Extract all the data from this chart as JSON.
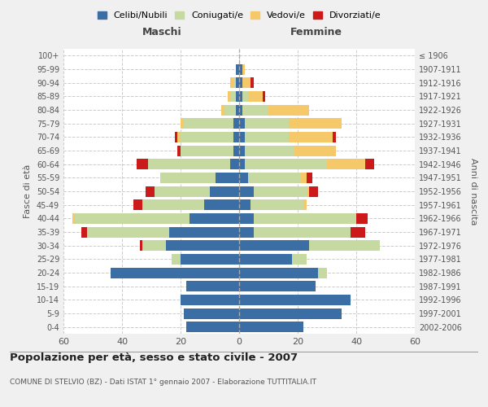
{
  "age_groups": [
    "0-4",
    "5-9",
    "10-14",
    "15-19",
    "20-24",
    "25-29",
    "30-34",
    "35-39",
    "40-44",
    "45-49",
    "50-54",
    "55-59",
    "60-64",
    "65-69",
    "70-74",
    "75-79",
    "80-84",
    "85-89",
    "90-94",
    "95-99",
    "100+"
  ],
  "birth_years": [
    "2002-2006",
    "1997-2001",
    "1992-1996",
    "1987-1991",
    "1982-1986",
    "1977-1981",
    "1972-1976",
    "1967-1971",
    "1962-1966",
    "1957-1961",
    "1952-1956",
    "1947-1951",
    "1942-1946",
    "1937-1941",
    "1932-1936",
    "1927-1931",
    "1922-1926",
    "1917-1921",
    "1912-1916",
    "1907-1911",
    "≤ 1906"
  ],
  "maschi": {
    "celibi": [
      18,
      19,
      20,
      18,
      44,
      20,
      25,
      24,
      17,
      12,
      10,
      8,
      3,
      2,
      2,
      2,
      1,
      1,
      1,
      1,
      0
    ],
    "coniugati": [
      0,
      0,
      0,
      0,
      0,
      3,
      8,
      28,
      39,
      21,
      19,
      19,
      28,
      18,
      18,
      17,
      4,
      2,
      1,
      0,
      0
    ],
    "vedovi": [
      0,
      0,
      0,
      0,
      0,
      0,
      0,
      0,
      1,
      0,
      0,
      0,
      0,
      0,
      1,
      1,
      1,
      1,
      1,
      0,
      0
    ],
    "divorziati": [
      0,
      0,
      0,
      0,
      0,
      0,
      1,
      2,
      0,
      3,
      3,
      0,
      4,
      1,
      1,
      0,
      0,
      0,
      0,
      0,
      0
    ]
  },
  "femmine": {
    "nubili": [
      22,
      35,
      38,
      26,
      27,
      18,
      24,
      5,
      5,
      4,
      5,
      3,
      2,
      2,
      2,
      2,
      1,
      1,
      1,
      1,
      0
    ],
    "coniugate": [
      0,
      0,
      0,
      0,
      3,
      5,
      24,
      33,
      35,
      18,
      18,
      18,
      28,
      17,
      15,
      15,
      9,
      2,
      0,
      0,
      0
    ],
    "vedove": [
      0,
      0,
      0,
      0,
      0,
      0,
      0,
      0,
      0,
      1,
      1,
      2,
      13,
      14,
      15,
      18,
      14,
      5,
      3,
      1,
      0
    ],
    "divorziate": [
      0,
      0,
      0,
      0,
      0,
      0,
      0,
      5,
      4,
      0,
      3,
      2,
      3,
      0,
      1,
      0,
      0,
      1,
      1,
      0,
      0
    ]
  },
  "colors": {
    "celibi_nubili": "#3b6ea5",
    "coniugati": "#c5d9a0",
    "vedovi": "#f5c96a",
    "divorziati": "#cc1a1a"
  },
  "xlim": [
    -60,
    60
  ],
  "title": "Popolazione per età, sesso e stato civile - 2007",
  "subtitle": "COMUNE DI STELVIO (BZ) - Dati ISTAT 1° gennaio 2007 - Elaborazione TUTTITALIA.IT",
  "xlabel_left": "Maschi",
  "xlabel_right": "Femmine",
  "ylabel_left": "Fasce di età",
  "ylabel_right": "Anni di nascita",
  "xticks": [
    -60,
    -40,
    -20,
    0,
    20,
    40,
    60
  ],
  "xticklabels": [
    "60",
    "40",
    "20",
    "0",
    "20",
    "40",
    "60"
  ],
  "bg_color": "#f0f0f0",
  "plot_bg": "#ffffff"
}
